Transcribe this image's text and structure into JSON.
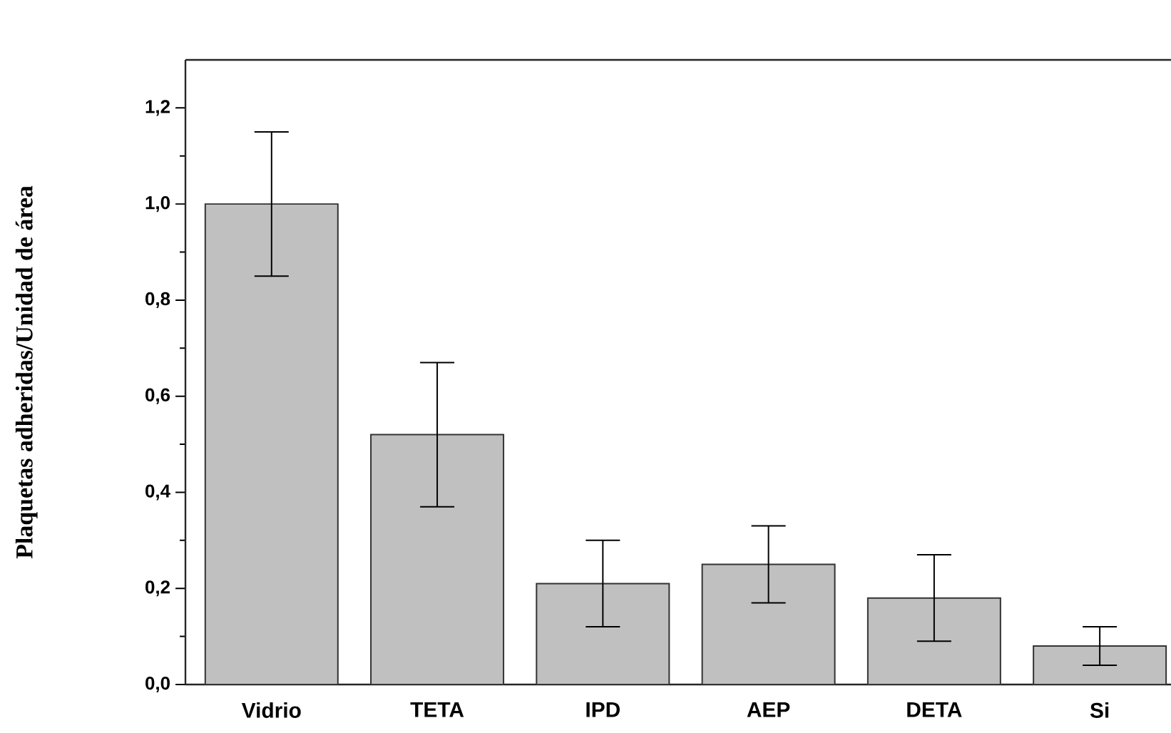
{
  "chart_data": {
    "type": "bar",
    "ylabel": "Plaquetas adheridas/Unidad de área",
    "categories": [
      "Vidrio",
      "TETA",
      "IPD",
      "AEP",
      "DETA",
      "Si"
    ],
    "values": [
      1.0,
      0.52,
      0.21,
      0.25,
      0.18,
      0.08
    ],
    "errors": [
      0.15,
      0.15,
      0.09,
      0.08,
      0.09,
      0.04
    ],
    "color": "#c0c0c0",
    "ylim": [
      0,
      1.3
    ],
    "yticks": [
      {
        "value": 0,
        "label": "0,0"
      },
      {
        "value": 0.1,
        "label": null
      },
      {
        "value": 0.2,
        "label": "0,2"
      },
      {
        "value": 0.3,
        "label": null
      },
      {
        "value": 0.4,
        "label": "0,4"
      },
      {
        "value": 0.5,
        "label": null
      },
      {
        "value": 0.6,
        "label": "0,6"
      },
      {
        "value": 0.7,
        "label": null
      },
      {
        "value": 0.8,
        "label": "0,8"
      },
      {
        "value": 0.9,
        "label": null
      },
      {
        "value": 1.0,
        "label": "1,0"
      },
      {
        "value": 1.1,
        "label": null
      },
      {
        "value": 1.2,
        "label": "1,2"
      }
    ],
    "grid": false
  }
}
